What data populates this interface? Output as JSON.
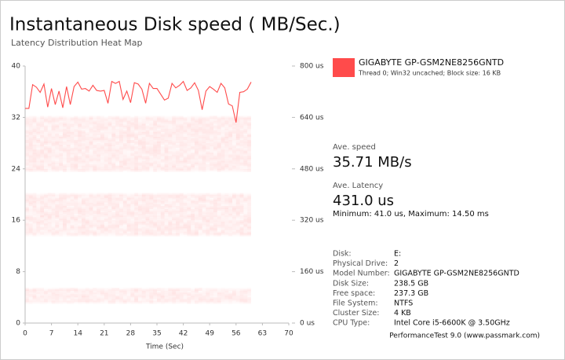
{
  "chart_data": {
    "type": "line",
    "title": "Instantaneous Disk speed ( MB/Sec.)",
    "subtitle": "Latency Distribution Heat Map",
    "xlabel": "Time (Sec)",
    "legend_detail": "Thread 0; Win32 uncached; Block size: 16 KB",
    "x": [
      0,
      1,
      2,
      3,
      4,
      5,
      6,
      7,
      8,
      9,
      10,
      11,
      12,
      13,
      14,
      15,
      16,
      17,
      18,
      19,
      20,
      21,
      22,
      23,
      24,
      25,
      26,
      27,
      28,
      29,
      30,
      31,
      32,
      33,
      34,
      35,
      36,
      37,
      38,
      39,
      40,
      41,
      42,
      43,
      44,
      45,
      46,
      47,
      48,
      49,
      50,
      51,
      52,
      53,
      54,
      55,
      56,
      57,
      58,
      59,
      60
    ],
    "series": [
      {
        "name": "GIGABYTE GP-GSM2NE8256GNTD",
        "color": "#ff4b4b",
        "values": [
          33.4,
          33.4,
          37.1,
          36.7,
          35.9,
          37.2,
          33.6,
          36.5,
          34.0,
          36.1,
          33.5,
          36.8,
          34.0,
          36.8,
          37.5,
          36.4,
          36.5,
          36.1,
          37.0,
          36.2,
          36.1,
          36.2,
          34.2,
          37.6,
          37.3,
          37.6,
          34.8,
          36.1,
          34.3,
          37.4,
          37.2,
          36.4,
          34.2,
          37.3,
          36.5,
          36.5,
          35.6,
          34.7,
          35.0,
          37.3,
          36.6,
          37.0,
          37.6,
          36.2,
          36.6,
          37.4,
          36.2,
          33.2,
          36.1,
          36.8,
          36.4,
          35.9,
          37.3,
          36.6,
          34.1,
          33.8,
          31.2,
          35.9,
          36.0,
          36.4,
          37.5
        ]
      }
    ],
    "xlim": [
      0,
      70
    ],
    "xticks": [
      0,
      7,
      14,
      21,
      28,
      35,
      42,
      49,
      56,
      63,
      70
    ],
    "ylim": [
      0,
      40
    ],
    "yticks": [
      0,
      8,
      16,
      24,
      32,
      40
    ],
    "y2lim": [
      0,
      800
    ],
    "y2ticks": [
      {
        "value": 0,
        "label": "0 us"
      },
      {
        "value": 160,
        "label": "160 us"
      },
      {
        "value": 320,
        "label": "320 us"
      },
      {
        "value": 480,
        "label": "480 us"
      },
      {
        "value": 640,
        "label": "640 us"
      },
      {
        "value": 800,
        "label": "800 us"
      }
    ],
    "grid": false
  },
  "stats": {
    "speed_label": "Ave. speed",
    "speed": "35.71 MB/s",
    "latency_label": "Ave. Latency",
    "latency": "431.0 us",
    "range": "Minimum: 41.0 us, Maximum: 14.50 ms"
  },
  "disk_info": [
    [
      "Disk:",
      "E:"
    ],
    [
      "Physical Drive:",
      "2"
    ],
    [
      "Model Number:",
      "GIGABYTE GP-GSM2NE8256GNTD"
    ],
    [
      "Disk Size:",
      "238.5 GB"
    ],
    [
      "Free space:",
      "237.3 GB"
    ],
    [
      "File System:",
      "NTFS"
    ],
    [
      "Cluster Size:",
      "4 KB"
    ],
    [
      "CPU Type:",
      "Intel Core i5-6600K @ 3.50GHz"
    ]
  ],
  "footer": "PerformanceTest 9.0 (www.passmark.com)"
}
